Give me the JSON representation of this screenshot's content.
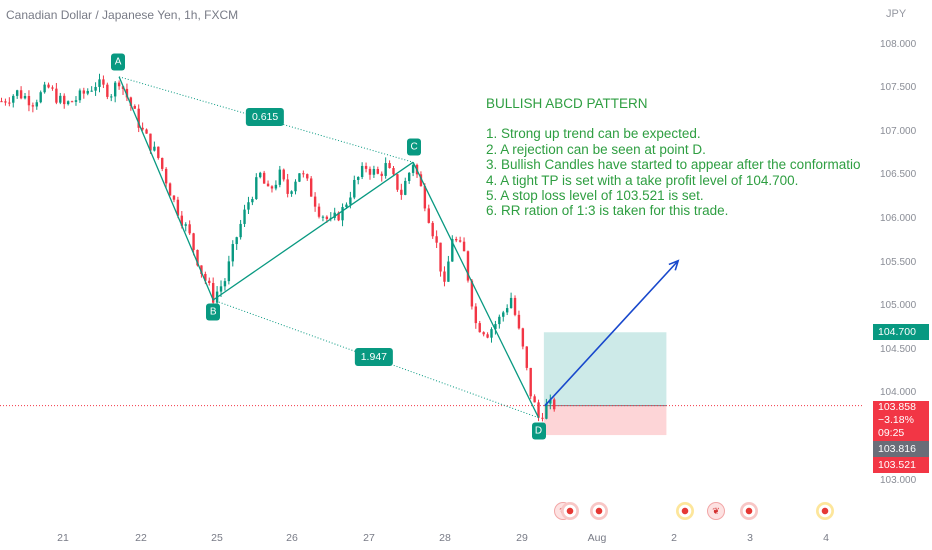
{
  "header": {
    "symbol_title": "Canadian Dollar / Japanese Yen, 1h, FXCM",
    "currency": "JPY"
  },
  "colors": {
    "up": "#089981",
    "down": "#f23645",
    "pattern_line": "#089981",
    "projection_arrow": "#1848cc",
    "take_profit_zone": "#b2dfdb",
    "stop_loss_zone": "#fccbcd",
    "notes_text": "#2e9e41"
  },
  "annotations": {
    "heading": "BULLISH ABCD PATTERN",
    "notes": [
      "1. Strong up trend can be expected.",
      "2. A rejection can be seen at point D.",
      "3. Bullish Candles have started to appear after the conformatio",
      "4. A tight TP is set with a take profit level of 104.700.",
      "5. A stop loss level of 103.521 is set.",
      "6. RR ration of 1:3 is taken for this trade."
    ],
    "points": [
      "A",
      "B",
      "C",
      "D"
    ],
    "ratio_ac": "0.615",
    "ratio_bd": "1.947"
  },
  "price_tags": {
    "take_profit": "104.700",
    "current_price": "103.858",
    "change": "−3.18%",
    "countdown": "09:25",
    "previous_close": "103.816",
    "stop_loss": "103.521"
  },
  "chart_data": {
    "type": "candlestick",
    "title": "Canadian Dollar / Japanese Yen, 1h, FXCM",
    "y_axis_unit": "JPY",
    "ylim": [
      102.9,
      108.25
    ],
    "y_ticks": [
      "108.000",
      "107.500",
      "107.000",
      "106.500",
      "106.000",
      "105.500",
      "105.000",
      "104.500",
      "104.000",
      "103.500",
      "103.000"
    ],
    "x_ticks": [
      "21",
      "22",
      "25",
      "26",
      "27",
      "28",
      "29",
      "Aug",
      "2",
      "3",
      "4"
    ],
    "price_path": [
      [
        0,
        107.35
      ],
      [
        4,
        107.45
      ],
      [
        8,
        107.35
      ],
      [
        12,
        107.5
      ],
      [
        16,
        107.3
      ],
      [
        20,
        107.4
      ],
      [
        24,
        107.55
      ],
      [
        28,
        107.45
      ],
      [
        30,
        107.6
      ],
      [
        33,
        107.3
      ],
      [
        36,
        107.0
      ],
      [
        40,
        106.7
      ],
      [
        44,
        106.2
      ],
      [
        48,
        105.8
      ],
      [
        51,
        105.4
      ],
      [
        54,
        105.1
      ],
      [
        57,
        105.3
      ],
      [
        60,
        105.8
      ],
      [
        63,
        106.2
      ],
      [
        66,
        106.5
      ],
      [
        68,
        106.3
      ],
      [
        71,
        106.5
      ],
      [
        73,
        106.3
      ],
      [
        76,
        106.55
      ],
      [
        78,
        106.4
      ],
      [
        81,
        106.1
      ],
      [
        84,
        105.95
      ],
      [
        87,
        106.1
      ],
      [
        90,
        106.4
      ],
      [
        93,
        106.6
      ],
      [
        96,
        106.5
      ],
      [
        98,
        106.6
      ],
      [
        100,
        106.45
      ],
      [
        102,
        106.3
      ],
      [
        105,
        106.65
      ],
      [
        108,
        106.2
      ],
      [
        111,
        105.7
      ],
      [
        113,
        105.2
      ],
      [
        115,
        105.8
      ],
      [
        118,
        105.6
      ],
      [
        121,
        104.8
      ],
      [
        124,
        104.7
      ],
      [
        127,
        104.85
      ],
      [
        130,
        105.1
      ],
      [
        133,
        104.5
      ],
      [
        135,
        104.0
      ],
      [
        137,
        103.72
      ],
      [
        139,
        103.85
      ],
      [
        141,
        103.86
      ]
    ],
    "points": [
      {
        "name": "A",
        "x": 30,
        "y": 107.63
      },
      {
        "name": "B",
        "x": 54,
        "y": 105.07
      },
      {
        "name": "C",
        "x": 105,
        "y": 106.65
      },
      {
        "name": "D",
        "x": 137,
        "y": 103.72
      }
    ],
    "ratios": [
      {
        "label": "0.615",
        "between": "A-C"
      },
      {
        "label": "1.947",
        "between": "B-D"
      }
    ],
    "position": {
      "entry": 103.858,
      "take_profit": 104.7,
      "stop_loss": 103.521,
      "entry_bar": 139,
      "end_bar": 170
    },
    "projection": {
      "from": [
        139,
        103.858
      ],
      "to": [
        173,
        105.52
      ]
    },
    "current_price": 103.858,
    "grid": false
  },
  "events": [
    {
      "kind": "flag",
      "x_slot": 0
    },
    {
      "kind": "red",
      "x_slot": 1
    },
    {
      "kind": "red",
      "x_slot": 2
    },
    {
      "kind": "yellow",
      "x_slot": 3
    },
    {
      "kind": "flag",
      "x_slot": 4
    },
    {
      "kind": "red",
      "x_slot": 5
    },
    {
      "kind": "yellow",
      "x_slot": 6
    }
  ]
}
